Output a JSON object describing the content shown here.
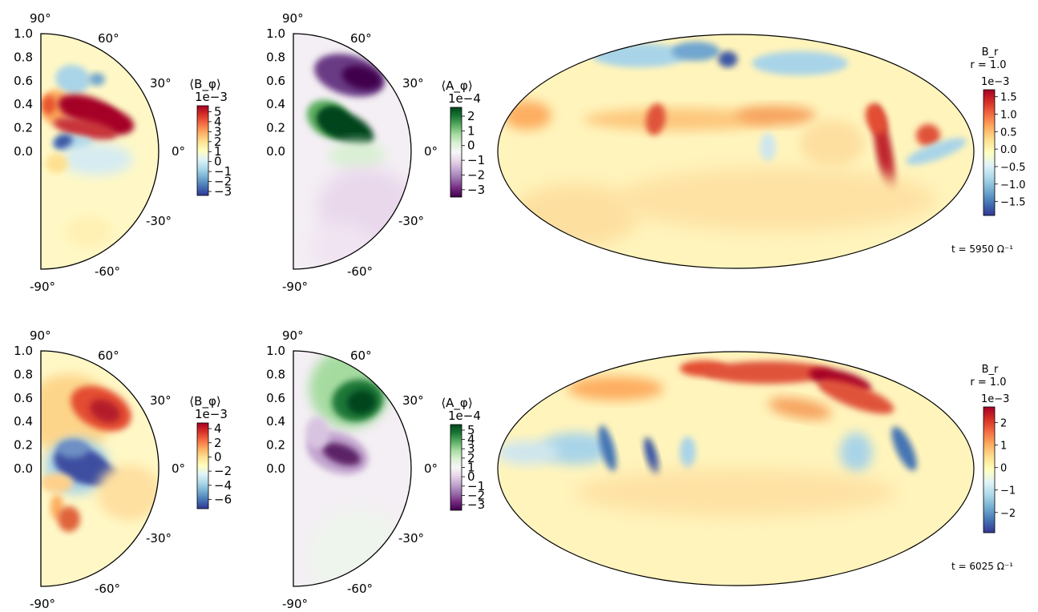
{
  "figure": {
    "rows": [
      {
        "meridional_bphi": {
          "radius_ticks": [
            "1.0",
            "0.8",
            "0.6",
            "0.4",
            "0.2",
            "0.0"
          ],
          "lat_labels": {
            "top": "90°",
            "p60": "60°",
            "p30": "30°",
            "eq": "0°",
            "m30": "-30°",
            "m60": "-60°",
            "bottom": "-90°"
          },
          "colorbar": {
            "label": "⟨B_φ⟩",
            "exponent": "1e−3",
            "ticks": [
              "5",
              "4",
              "3",
              "2",
              "1",
              "0",
              "−1",
              "−2",
              "−3"
            ],
            "range": [
              -3.4,
              5.6
            ],
            "cmap": "RdYlBu_r"
          }
        },
        "meridional_aphi": {
          "radius_ticks": [
            "1.0",
            "0.8",
            "0.6",
            "0.4",
            "0.2",
            "0.0"
          ],
          "lat_labels": {
            "top": "90°",
            "p60": "60°",
            "p30": "30°",
            "eq": "0°",
            "m30": "-30°",
            "m60": "-60°",
            "bottom": "-90°"
          },
          "colorbar": {
            "label": "⟨A_φ⟩",
            "exponent": "1e−4",
            "ticks": [
              "2",
              "1",
              "0",
              "−1",
              "−2",
              "−3"
            ],
            "range": [
              -3.5,
              2.6
            ],
            "cmap": "PRGn"
          }
        },
        "surface_br": {
          "title": "B_r",
          "subtitle": "r = 1.0",
          "colorbar": {
            "exponent": "1e−3",
            "ticks": [
              "1.5",
              "1.0",
              "0.5",
              "0.0",
              "−0.5",
              "−1.0",
              "−1.5"
            ],
            "range": [
              -1.9,
              1.7
            ],
            "cmap": "RdYlBu_r"
          },
          "time_label": "t = 5950 Ω⁻¹"
        }
      },
      {
        "meridional_bphi": {
          "radius_ticks": [
            "1.0",
            "0.8",
            "0.6",
            "0.4",
            "0.2",
            "0.0"
          ],
          "lat_labels": {
            "top": "90°",
            "p60": "60°",
            "p30": "30°",
            "eq": "0°",
            "m30": "-30°",
            "m60": "-60°",
            "bottom": "-90°"
          },
          "colorbar": {
            "label": "⟨B_φ⟩",
            "exponent": "1e−3",
            "ticks": [
              "4",
              "2",
              "0",
              "−2",
              "−4",
              "−6"
            ],
            "range": [
              -7.3,
              4.8
            ],
            "cmap": "RdYlBu_r"
          }
        },
        "meridional_aphi": {
          "radius_ticks": [
            "1.0",
            "0.8",
            "0.6",
            "0.4",
            "0.2",
            "0.0"
          ],
          "lat_labels": {
            "top": "90°",
            "p60": "60°",
            "p30": "30°",
            "eq": "0°",
            "m30": "-30°",
            "m60": "-60°",
            "bottom": "-90°"
          },
          "colorbar": {
            "label": "⟨A_φ⟩",
            "exponent": "1e−4",
            "ticks": [
              "5",
              "4",
              "3",
              "2",
              "1",
              "0",
              "−1",
              "−2",
              "−3"
            ],
            "range": [
              -3.6,
              5.6
            ],
            "cmap": "PRGn"
          }
        },
        "surface_br": {
          "title": "B_r",
          "subtitle": "r = 1.0",
          "colorbar": {
            "exponent": "1e−3",
            "ticks": [
              "2",
              "1",
              "0",
              "−1",
              "−2"
            ],
            "range": [
              -2.9,
              2.7
            ],
            "cmap": "RdYlBu_r"
          },
          "time_label": "t = 6025 Ω⁻¹"
        }
      }
    ]
  },
  "chart_data": [
    {
      "type": "heatmap",
      "description_source": "row 1 meridional slice",
      "field": "⟨B_φ⟩",
      "colorbar_ticks": [
        5,
        4,
        3,
        2,
        1,
        0,
        -1,
        -2,
        -3
      ],
      "scale": "1e-3",
      "radius_axis": [
        0.0,
        0.2,
        0.4,
        0.6,
        0.8,
        1.0
      ],
      "latitude_ticks_deg": [
        90,
        60,
        30,
        0,
        -30,
        -60,
        -90
      ]
    },
    {
      "type": "heatmap",
      "description_source": "row 1 meridional slice",
      "field": "⟨A_φ⟩",
      "colorbar_ticks": [
        2,
        1,
        0,
        -1,
        -2,
        -3
      ],
      "scale": "1e-4",
      "radius_axis": [
        0.0,
        0.2,
        0.4,
        0.6,
        0.8,
        1.0
      ],
      "latitude_ticks_deg": [
        90,
        60,
        30,
        0,
        -30,
        -60,
        -90
      ]
    },
    {
      "type": "heatmap",
      "description_source": "row 1 Mollweide map",
      "field": "B_r",
      "radius": 1.0,
      "colorbar_ticks": [
        1.5,
        1.0,
        0.5,
        0.0,
        -0.5,
        -1.0,
        -1.5
      ],
      "scale": "1e-3",
      "time": 5950
    },
    {
      "type": "heatmap",
      "description_source": "row 2 meridional slice",
      "field": "⟨B_φ⟩",
      "colorbar_ticks": [
        4,
        2,
        0,
        -2,
        -4,
        -6
      ],
      "scale": "1e-3",
      "radius_axis": [
        0.0,
        0.2,
        0.4,
        0.6,
        0.8,
        1.0
      ],
      "latitude_ticks_deg": [
        90,
        60,
        30,
        0,
        -30,
        -60,
        -90
      ]
    },
    {
      "type": "heatmap",
      "description_source": "row 2 meridional slice",
      "field": "⟨A_φ⟩",
      "colorbar_ticks": [
        5,
        4,
        3,
        2,
        1,
        0,
        -1,
        -2,
        -3
      ],
      "scale": "1e-4",
      "radius_axis": [
        0.0,
        0.2,
        0.4,
        0.6,
        0.8,
        1.0
      ],
      "latitude_ticks_deg": [
        90,
        60,
        30,
        0,
        -30,
        -60,
        -90
      ]
    },
    {
      "type": "heatmap",
      "description_source": "row 2 Mollweide map",
      "field": "B_r",
      "radius": 1.0,
      "colorbar_ticks": [
        2,
        1,
        0,
        -1,
        -2
      ],
      "scale": "1e-3",
      "time": 6025
    }
  ]
}
